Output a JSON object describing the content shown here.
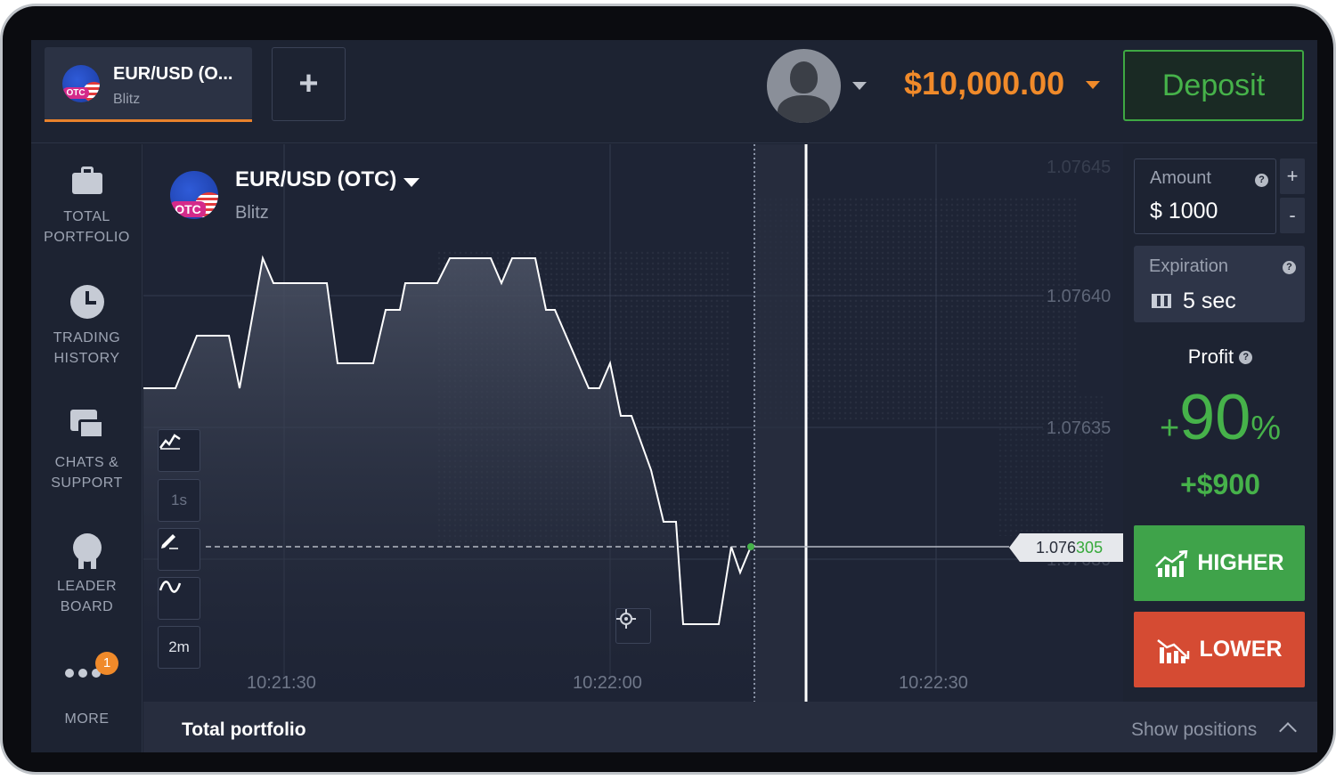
{
  "top_bar": {
    "asset_tab": {
      "name": "EUR/USD (O...",
      "sub": "Blitz",
      "otc": "OTC"
    },
    "add_tab_label": "+",
    "balance": "$10,000.00",
    "deposit_label": "Deposit"
  },
  "sidebar": {
    "items": [
      {
        "line1": "TOTAL",
        "line2": "PORTFOLIO",
        "icon": "briefcase-icon"
      },
      {
        "line1": "TRADING",
        "line2": "HISTORY",
        "icon": "clock-icon"
      },
      {
        "line1": "CHATS &",
        "line2": "SUPPORT",
        "icon": "chat-icon"
      },
      {
        "line1": "LEADER",
        "line2": "BOARD",
        "icon": "medal-icon"
      }
    ],
    "more": {
      "label": "MORE",
      "badge": "1"
    }
  },
  "chart": {
    "asset_name": "EUR/USD (OTC)",
    "asset_sub": "Blitz",
    "otc": "OTC",
    "tools": {
      "chart_type": "chart-type-icon",
      "timeframe": "1s",
      "draw": "pencil-icon",
      "indicators": "indicator-icon",
      "range": "2m"
    },
    "price_labels": [
      "1.07645",
      "1.07640",
      "1.07635",
      "1.07630"
    ],
    "time_labels": [
      "10:21:30",
      "10:22:00",
      "10:22:30"
    ],
    "current_price_prefix": "1.076",
    "current_price_suffix": "305"
  },
  "panel": {
    "amount_label": "Amount",
    "amount_value": "$  1000",
    "plus": "+",
    "minus": "-",
    "expiration_label": "Expiration",
    "expiration_value": "5 sec",
    "profit_label": "Profit",
    "profit_percent_sign": "+",
    "profit_percent": "90",
    "profit_percent_unit": "%",
    "profit_amount": "+$900",
    "higher_label": "HIGHER",
    "lower_label": "LOWER",
    "help": "?"
  },
  "bottom_bar": {
    "title": "Total portfolio",
    "show_positions": "Show positions"
  },
  "colors": {
    "accent_orange": "#f08a2a",
    "green": "#46b24a",
    "red": "#d54b33",
    "background": "#1d2332"
  }
}
